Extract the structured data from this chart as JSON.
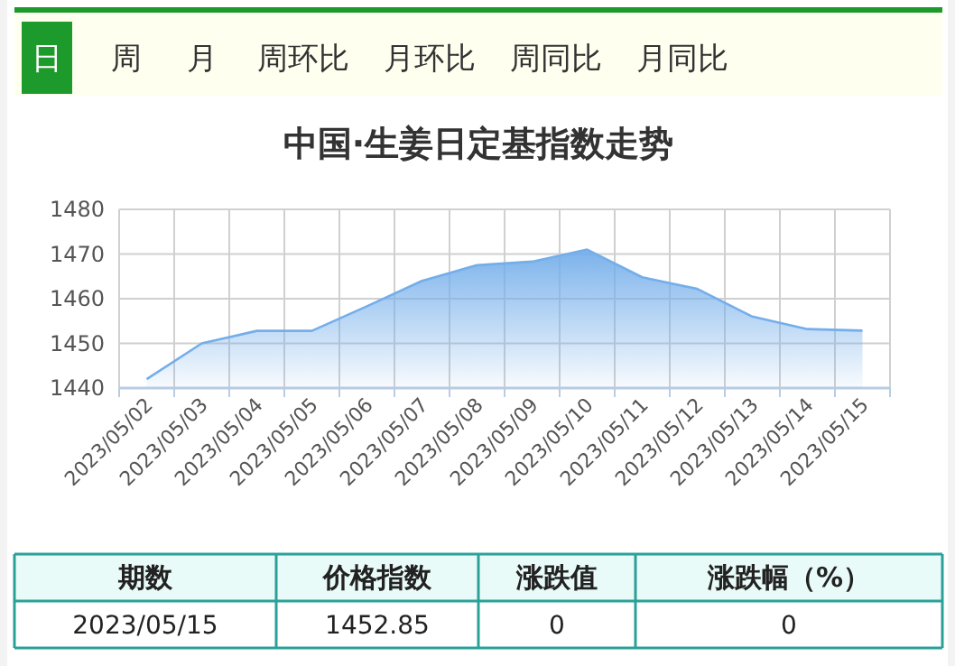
{
  "chart_data": [
    {
      "type": "other",
      "annotations": [
        "日",
        "周",
        "月",
        "周环比",
        "月环比",
        "周同比",
        "月同比"
      ]
    },
    {
      "type": "area",
      "title": "中国·生姜日定基指数走势",
      "categories": [
        "2023/05/02",
        "2023/05/03",
        "2023/05/04",
        "2023/05/05",
        "2023/05/06",
        "2023/05/07",
        "2023/05/08",
        "2023/05/09",
        "2023/05/10",
        "2023/05/11",
        "2023/05/12",
        "2023/05/13",
        "2023/05/14",
        "2023/05/15"
      ],
      "series": [
        {
          "color": "#74aeea",
          "values": [
            1442,
            1450,
            1452.8,
            1452.8,
            1458.3,
            1464,
            1467.5,
            1468.3,
            1471,
            1464.8,
            1462.2,
            1456,
            1453.2,
            1452.85
          ]
        }
      ],
      "ylim": [
        1440,
        1480
      ],
      "yticks": [
        1440,
        1450,
        1460,
        1470,
        1480
      ],
      "grid": true
    },
    {
      "type": "other",
      "annotations": [
        "期数",
        "价格指数",
        "涨跌值",
        "涨跌幅（%）",
        "2023/05/15",
        "1452.85",
        "0",
        "0"
      ]
    }
  ]
}
